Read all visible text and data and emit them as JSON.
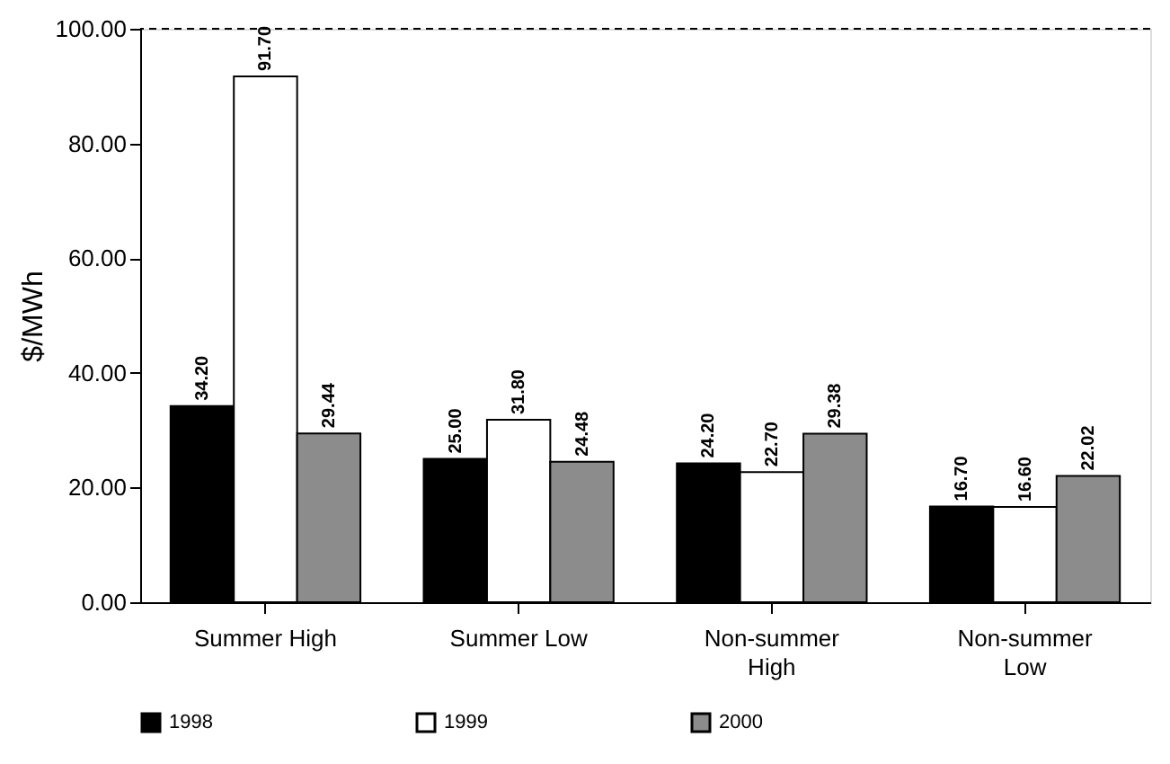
{
  "chart_data": {
    "type": "bar",
    "ylabel": "$/MWh",
    "categories": [
      "Summer High",
      "Summer Low",
      "Non-summer\nHigh",
      "Non-summer\nLow"
    ],
    "series": [
      {
        "name": "1998",
        "color": "#000000",
        "values": [
          34.2,
          25.0,
          24.2,
          16.7
        ],
        "value_labels": [
          "34.20",
          "25.00",
          "24.20",
          "16.70"
        ]
      },
      {
        "name": "1999",
        "color": "#ffffff",
        "values": [
          91.7,
          31.8,
          22.7,
          16.6
        ],
        "value_labels": [
          "91.70",
          "31.80",
          "22.70",
          "16.60"
        ]
      },
      {
        "name": "2000",
        "color": "#8c8c8c",
        "values": [
          29.44,
          24.48,
          29.38,
          22.02
        ],
        "value_labels": [
          "29.44",
          "24.48",
          "29.38",
          "22.02"
        ]
      }
    ],
    "ylim": [
      0,
      100
    ],
    "yticks": [
      {
        "value": 0,
        "label": "0.00"
      },
      {
        "value": 20,
        "label": "20.00"
      },
      {
        "value": 40,
        "label": "40.00"
      },
      {
        "value": 60,
        "label": "60.00"
      },
      {
        "value": 80,
        "label": "80.00"
      },
      {
        "value": 100,
        "label": "100.00"
      }
    ],
    "ref_lines": [
      {
        "axis": "y",
        "value": 100,
        "line_style": "dashed",
        "color": "#000000"
      }
    ],
    "grid": false,
    "legend": "bottom"
  }
}
